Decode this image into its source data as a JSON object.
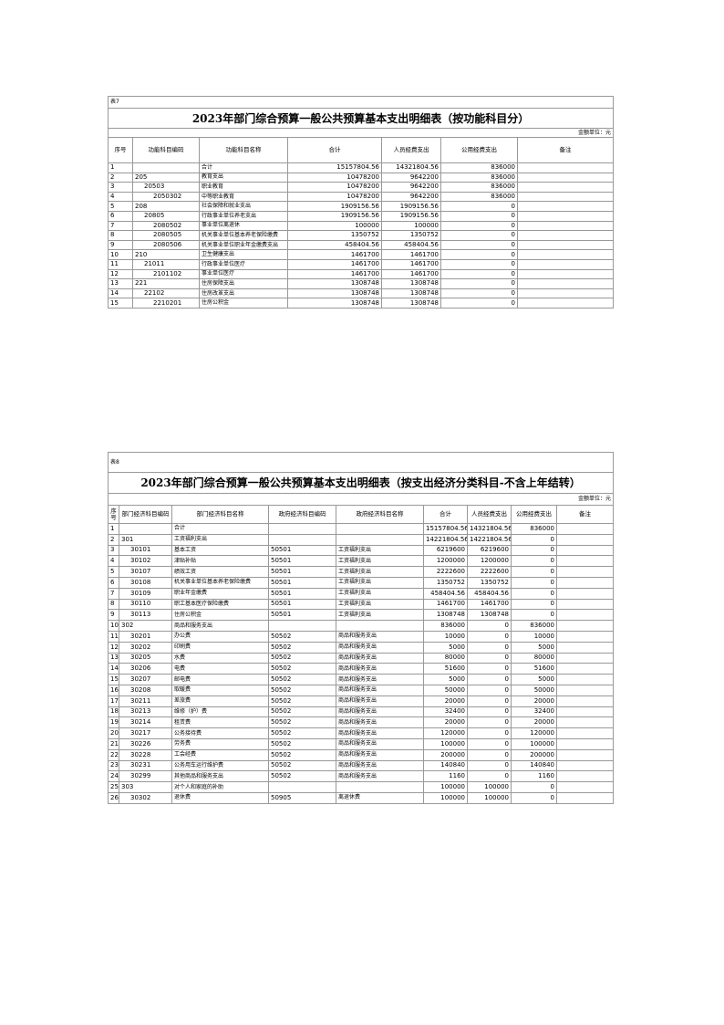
{
  "table7": {
    "label": "表7",
    "title": "2023年部门综合预算一般公共预算基本支出明细表（按功能科目分）",
    "unit": "金额单位：元",
    "headers": [
      "序号",
      "功能科目编码",
      "功能科目名称",
      "合计",
      "人员经费支出",
      "公用经费支出",
      "备注"
    ],
    "rows": [
      [
        1,
        null,
        "合计",
        15157804.56,
        14321804.56,
        836000
      ],
      [
        2,
        "205",
        "教育支出",
        10478200,
        9642200,
        836000
      ],
      [
        3,
        "20503",
        "职业教育",
        10478200,
        9642200,
        836000
      ],
      [
        4,
        "2050302",
        "中等职业教育",
        10478200,
        9642200,
        836000
      ],
      [
        5,
        "208",
        "社会保障和就业支出",
        1909156.56,
        1909156.56,
        0
      ],
      [
        6,
        "20805",
        "行政事业单位养老支出",
        1909156.56,
        1909156.56,
        0
      ],
      [
        7,
        "2080502",
        "事业单位离退休",
        100000,
        100000,
        0
      ],
      [
        8,
        "2080505",
        "机关事业单位基本养老保险缴费",
        1350752,
        1350752,
        0
      ],
      [
        9,
        "2080506",
        "机关事业单位职业年金缴费支出",
        458404.56,
        458404.56,
        0
      ],
      [
        10,
        "210",
        "卫生健康支出",
        1461700,
        1461700,
        0
      ],
      [
        11,
        "21011",
        "行政事业单位医疗",
        1461700,
        1461700,
        0
      ],
      [
        12,
        "2101102",
        "事业单位医疗",
        1461700,
        1461700,
        0
      ],
      [
        13,
        "221",
        "住房保障支出",
        1308748,
        1308748,
        0
      ],
      [
        14,
        "22102",
        "住房改革支出",
        1308748,
        1308748,
        0
      ],
      [
        15,
        "2210201",
        "住房公积金",
        1308748,
        1308748,
        0
      ]
    ]
  },
  "table8": {
    "label": "表8",
    "title": "2023年部门综合预算一般公共预算基本支出明细表（按支出经济分类科目-不含上年结转）",
    "unit": "金额单位：元",
    "headers": [
      "序号",
      "部门经济科目编码",
      "部门经济科目名称",
      "政府经济科目编码",
      "政府经济科目名称",
      "合计",
      "人员经费支出",
      "公用经费支出",
      "备注"
    ],
    "rows": [
      [
        1,
        null,
        "合计",
        null,
        null,
        15157804.56,
        14321804.56,
        836000
      ],
      [
        2,
        "301",
        "工资福利支出",
        null,
        null,
        14221804.56,
        14221804.56,
        0
      ],
      [
        3,
        "30101",
        "基本工资",
        "50501",
        "工资福利支出",
        6219600,
        6219600,
        0
      ],
      [
        4,
        "30102",
        "津贴补贴",
        "50501",
        "工资福利支出",
        1200000,
        1200000,
        0
      ],
      [
        5,
        "30107",
        "绩效工资",
        "50501",
        "工资福利支出",
        2222600,
        2222600,
        0
      ],
      [
        6,
        "30108",
        "机关事业单位基本养老保险缴费",
        "50501",
        "工资福利支出",
        1350752,
        1350752,
        0
      ],
      [
        7,
        "30109",
        "职业年金缴费",
        "50501",
        "工资福利支出",
        458404.56,
        458404.56,
        0
      ],
      [
        8,
        "30110",
        "职工基本医疗保险缴费",
        "50501",
        "工资福利支出",
        1461700,
        1461700,
        0
      ],
      [
        9,
        "30113",
        "住房公积金",
        "50501",
        "工资福利支出",
        1308748,
        1308748,
        0
      ],
      [
        10,
        "302",
        "商品和服务支出",
        null,
        null,
        836000,
        0,
        836000
      ],
      [
        11,
        "30201",
        "办公费",
        "50502",
        "商品和服务支出",
        10000,
        0,
        10000
      ],
      [
        12,
        "30202",
        "印刷费",
        "50502",
        "商品和服务支出",
        5000,
        0,
        5000
      ],
      [
        13,
        "30205",
        "水费",
        "50502",
        "商品和服务支出",
        80000,
        0,
        80000
      ],
      [
        14,
        "30206",
        "电费",
        "50502",
        "商品和服务支出",
        51600,
        0,
        51600
      ],
      [
        15,
        "30207",
        "邮电费",
        "50502",
        "商品和服务支出",
        5000,
        0,
        5000
      ],
      [
        16,
        "30208",
        "取暖费",
        "50502",
        "商品和服务支出",
        50000,
        0,
        50000
      ],
      [
        17,
        "30211",
        "差旅费",
        "50502",
        "商品和服务支出",
        20000,
        0,
        20000
      ],
      [
        18,
        "30213",
        "维修（护）费",
        "50502",
        "商品和服务支出",
        32400,
        0,
        32400
      ],
      [
        19,
        "30214",
        "租赁费",
        "50502",
        "商品和服务支出",
        20000,
        0,
        20000
      ],
      [
        20,
        "30217",
        "公务接待费",
        "50502",
        "商品和服务支出",
        120000,
        0,
        120000
      ],
      [
        21,
        "30226",
        "劳务费",
        "50502",
        "商品和服务支出",
        100000,
        0,
        100000
      ],
      [
        22,
        "30228",
        "工会经费",
        "50502",
        "商品和服务支出",
        200000,
        0,
        200000
      ],
      [
        23,
        "30231",
        "公务用车运行维护费",
        "50502",
        "商品和服务支出",
        140840,
        0,
        140840
      ],
      [
        24,
        "30299",
        "其他商品和服务支出",
        "50502",
        "商品和服务支出",
        1160,
        0,
        1160
      ],
      [
        25,
        "303",
        "对个人和家庭的补助",
        null,
        null,
        100000,
        100000,
        0
      ],
      [
        26,
        "30302",
        "退休费",
        "50905",
        "离退休费",
        100000,
        100000,
        0
      ]
    ]
  }
}
